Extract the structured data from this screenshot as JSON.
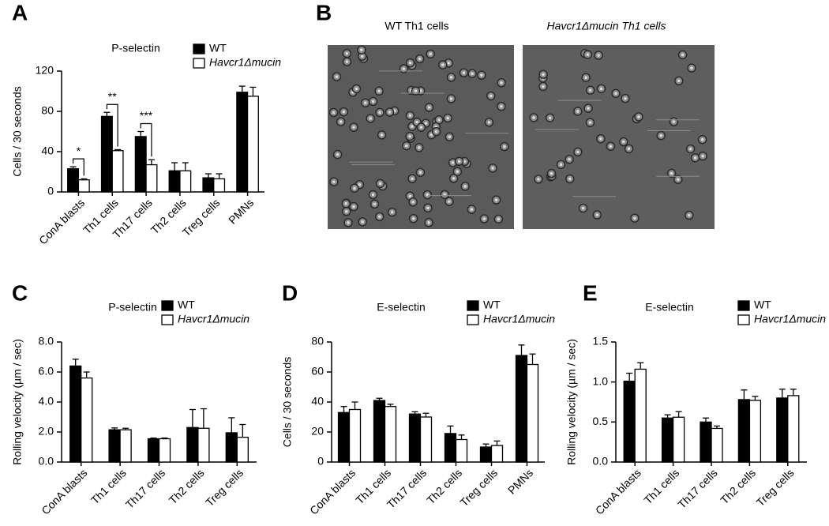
{
  "chart_data": [
    {
      "type": "bar",
      "panel_label": "A",
      "title": "P-selectin",
      "y_label": "Cells / 30 seconds",
      "categories": [
        "ConA blasts",
        "Th1 cells",
        "Th17 cells",
        "Th2 cells",
        "Treg cells",
        "PMNs"
      ],
      "series": [
        {
          "name": "WT",
          "color": "#000000",
          "values": [
            23,
            75,
            55,
            21,
            14,
            99
          ],
          "errors": [
            2,
            4,
            5,
            8,
            4,
            6
          ]
        },
        {
          "name": "Havcr1Δmucin",
          "color": "#ffffff",
          "values": [
            12,
            41,
            27,
            21,
            13,
            95
          ],
          "errors": [
            1,
            1,
            5,
            8,
            5,
            9
          ]
        }
      ],
      "annotations": [
        "*",
        "**",
        "***"
      ],
      "ylim": [
        0,
        120
      ],
      "yticks": [
        0,
        40,
        80,
        120
      ]
    },
    {
      "type": "bar",
      "panel_label": "C",
      "title": "P-selectin",
      "y_label": "Rolling velocity (µm / sec)",
      "categories": [
        "ConA blasts",
        "Th1 cells",
        "Th17 cells",
        "Th2 cells",
        "Treg cells"
      ],
      "series": [
        {
          "name": "WT",
          "color": "#000000",
          "values": [
            6.4,
            2.15,
            1.55,
            2.3,
            1.95
          ],
          "errors": [
            0.45,
            0.12,
            0.05,
            1.2,
            1.0
          ]
        },
        {
          "name": "Havcr1Δmucin",
          "color": "#ffffff",
          "values": [
            5.6,
            2.15,
            1.55,
            2.25,
            1.65
          ],
          "errors": [
            0.4,
            0.1,
            0.05,
            1.3,
            0.85
          ]
        }
      ],
      "ylim": [
        0,
        8
      ],
      "yticks": [
        {
          "value": 0,
          "label": "0.0"
        },
        {
          "value": 2,
          "label": "2.0"
        },
        {
          "value": 4,
          "label": "4.0"
        },
        {
          "value": 6,
          "label": "6.0"
        },
        {
          "value": 8,
          "label": "8.0"
        }
      ]
    },
    {
      "type": "bar",
      "panel_label": "D",
      "title": "E-selectin",
      "y_label": "Cells / 30 seconds",
      "categories": [
        "ConA blasts",
        "Th1 cells",
        "Th17 cells",
        "Th2 cells",
        "Treg cells",
        "PMNs"
      ],
      "series": [
        {
          "name": "WT",
          "color": "#000000",
          "values": [
            33,
            41,
            32,
            19,
            10,
            71
          ],
          "errors": [
            4,
            1.5,
            1.5,
            5,
            2,
            7
          ]
        },
        {
          "name": "Havcr1Δmucin",
          "color": "#ffffff",
          "values": [
            35,
            37,
            30,
            15,
            11,
            65
          ],
          "errors": [
            5,
            1.5,
            2.5,
            3,
            3,
            7
          ]
        }
      ],
      "ylim": [
        0,
        80
      ],
      "yticks": [
        0,
        20,
        40,
        60,
        80
      ]
    },
    {
      "type": "bar",
      "panel_label": "E",
      "title": "E-selectin",
      "y_label": "Rolling velocity (µm / sec)",
      "categories": [
        "ConA blasts",
        "Th1 cells",
        "Th17 cells",
        "Th2 cells",
        "Treg cells"
      ],
      "series": [
        {
          "name": "WT",
          "color": "#000000",
          "values": [
            1.01,
            0.55,
            0.5,
            0.78,
            0.8
          ],
          "errors": [
            0.1,
            0.04,
            0.05,
            0.12,
            0.11
          ]
        },
        {
          "name": "Havcr1Δmucin",
          "color": "#ffffff",
          "values": [
            1.16,
            0.56,
            0.42,
            0.77,
            0.83
          ],
          "errors": [
            0.08,
            0.07,
            0.03,
            0.05,
            0.08
          ]
        }
      ],
      "ylim": [
        0,
        1.5
      ],
      "yticks": [
        {
          "value": 0,
          "label": "0.0"
        },
        0.5,
        {
          "value": 1,
          "label": "1.0"
        },
        1.5
      ]
    }
  ],
  "panel_b": {
    "panel_label": "B",
    "image_titles": [
      "WT  Th1 cells",
      "Havcr1Δmucin Th1 cells"
    ]
  }
}
